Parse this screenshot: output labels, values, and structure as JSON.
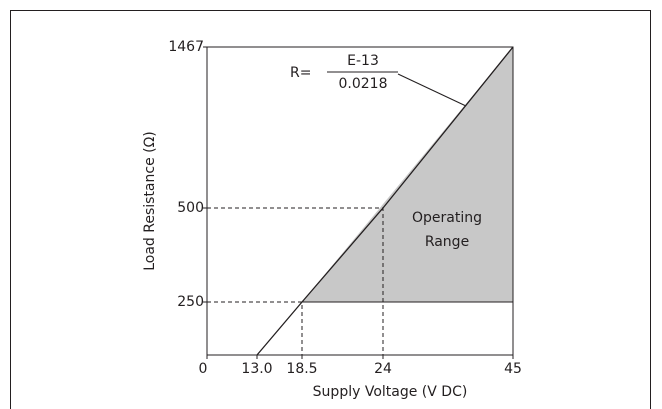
{
  "chart_data": {
    "type": "line",
    "x_label": "Supply Voltage (V DC)",
    "y_label": "Load Resistance (Ω)",
    "annotation": [
      "Operating",
      "Range"
    ],
    "formula": {
      "lhs": "R=",
      "numerator": "E-13",
      "denominator": "0.0218"
    },
    "x": [
      13,
      18.5,
      24,
      45
    ],
    "series": [
      {
        "color": "#231f20",
        "values": [
          0,
          250,
          500,
          1467
        ]
      }
    ],
    "fill_color": "#c8c8c8",
    "xlim": [
      0,
      45
    ],
    "ylim": [
      0,
      1467
    ],
    "xticks": [
      0,
      {
        "value": 13,
        "label": "13.0"
      },
      18.5,
      24,
      45
    ],
    "yticks": [
      250,
      500,
      1467
    ]
  }
}
